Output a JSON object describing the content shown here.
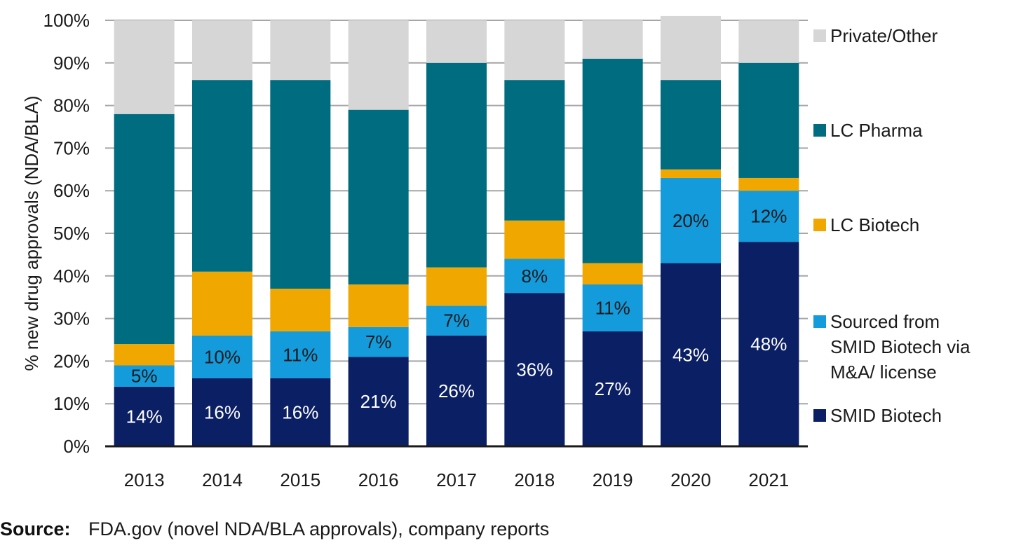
{
  "chart_data": {
    "type": "bar",
    "stacked": true,
    "categories": [
      "2013",
      "2014",
      "2015",
      "2016",
      "2017",
      "2018",
      "2019",
      "2020",
      "2021"
    ],
    "series": [
      {
        "name": "SMID Biotech",
        "color": "#0b1f64",
        "values": [
          14,
          16,
          16,
          21,
          26,
          36,
          27,
          43,
          48
        ]
      },
      {
        "name": "Sourced from SMID Biotech via M&A/ license",
        "color": "#139bdc",
        "values": [
          5,
          10,
          11,
          7,
          7,
          8,
          11,
          20,
          12
        ]
      },
      {
        "name": "LC Biotech",
        "color": "#f0a800",
        "values": [
          5,
          15,
          10,
          10,
          9,
          9,
          5,
          2,
          3
        ]
      },
      {
        "name": "LC Pharma",
        "color": "#006c80",
        "values": [
          54,
          45,
          49,
          41,
          48,
          33,
          48,
          21,
          27
        ]
      },
      {
        "name": "Private/Other",
        "color": "#d6d6d6",
        "values": [
          22,
          14,
          14,
          21,
          10,
          14,
          9,
          15,
          10
        ]
      }
    ],
    "data_labels": {
      "SMID Biotech": [
        "14%",
        "16%",
        "16%",
        "21%",
        "26%",
        "36%",
        "27%",
        "43%",
        "48%"
      ],
      "Sourced from SMID Biotech via M&A/ license": [
        "5%",
        "10%",
        "11%",
        "7%",
        "7%",
        "8%",
        "11%",
        "20%",
        "12%"
      ]
    },
    "ylabel": "% new drug approvals (NDA/BLA)",
    "xlabel": "",
    "ylim": [
      0,
      100
    ],
    "yticks": [
      "0%",
      "10%",
      "20%",
      "30%",
      "40%",
      "50%",
      "60%",
      "70%",
      "80%",
      "90%",
      "100%"
    ],
    "grid": true,
    "legend": {
      "placement": "right",
      "order": [
        "Private/Other",
        "LC Pharma",
        "LC Biotech",
        "Sourced from SMID Biotech via M&A/ license",
        "SMID Biotech"
      ],
      "labels": {
        "Private/Other": [
          "Private/Other"
        ],
        "LC Pharma": [
          "LC Pharma"
        ],
        "LC Biotech": [
          "LC Biotech"
        ],
        "Sourced from SMID Biotech via M&A/ license": [
          "Sourced from",
          "SMID Biotech via",
          "M&A/ license"
        ],
        "SMID Biotech": [
          "SMID Biotech"
        ]
      }
    }
  },
  "source": {
    "label": "Source:",
    "text": "FDA.gov (novel NDA/BLA approvals), company reports"
  },
  "colors": {
    "grid": "#a6a6a6",
    "axis": "#1a1a1a",
    "label_on_dark": "#ffffff",
    "label_on_light": "#1a1a1a"
  }
}
